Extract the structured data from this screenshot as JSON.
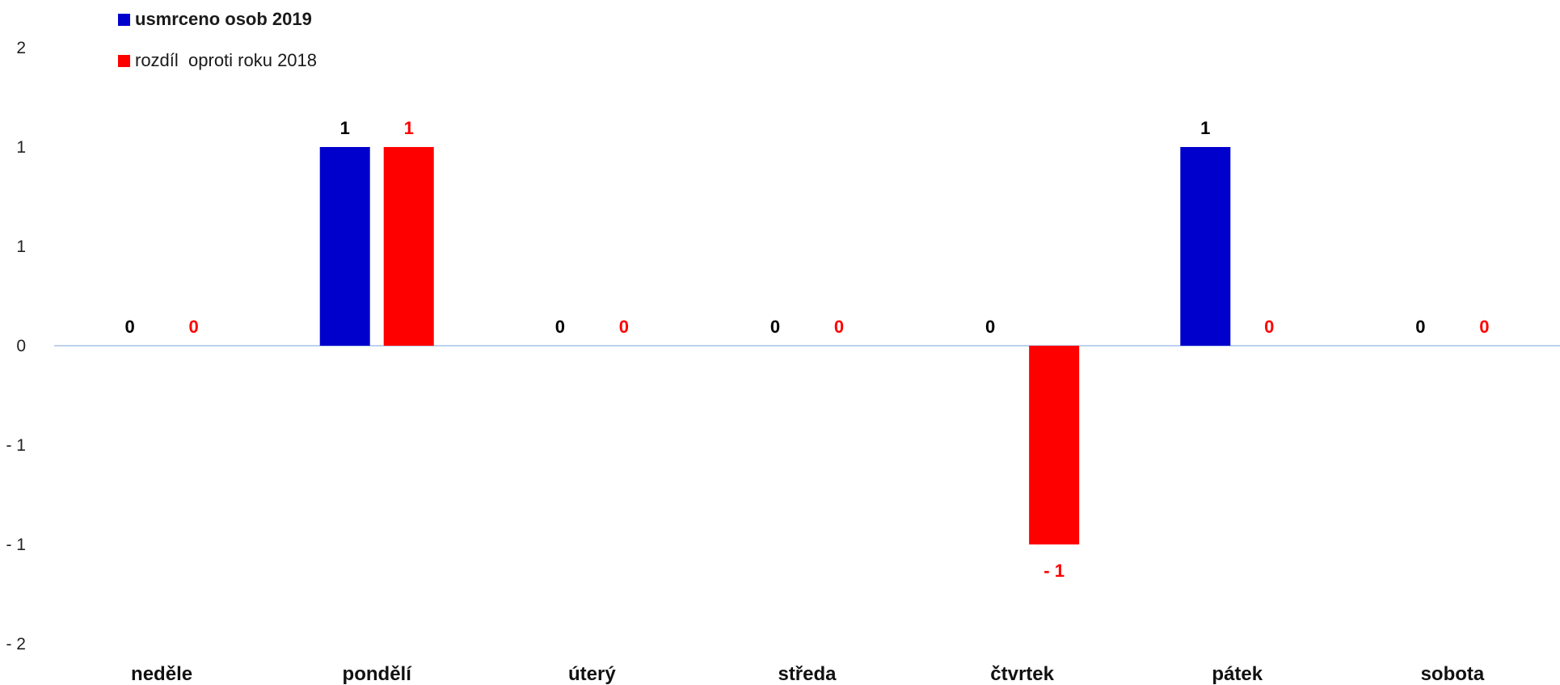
{
  "chart_data": {
    "type": "bar",
    "categories": [
      "neděle",
      "pondělí",
      "úterý",
      "středa",
      "čtvrtek",
      "pátek",
      "sobota"
    ],
    "series": [
      {
        "name": "usmrceno osob 2019",
        "values": [
          0,
          1,
          0,
          0,
          0,
          1,
          0
        ],
        "labels": [
          "0",
          "1",
          "0",
          "0",
          "0",
          "1",
          "0"
        ],
        "color": "#0000CC",
        "label_color": "#000000"
      },
      {
        "name": "rozdíl  oproti roku 2018",
        "values": [
          0,
          1,
          0,
          0,
          -1,
          0,
          0
        ],
        "labels": [
          "0",
          "1",
          "0",
          "0",
          "- 1",
          "0",
          "0"
        ],
        "color": "#FF0000",
        "label_color": "#FF0000"
      }
    ],
    "ylim": [
      -1.5,
      1.5
    ],
    "y_ticks": [
      1.5,
      1.0,
      0.5,
      0,
      -0.5,
      -1.0,
      -1.5
    ],
    "y_tick_labels": [
      "2",
      "1",
      "1",
      "0",
      "- 1",
      "- 1",
      "- 2"
    ],
    "legend_position": "top-left",
    "axis_color": "#A9C4E8"
  }
}
